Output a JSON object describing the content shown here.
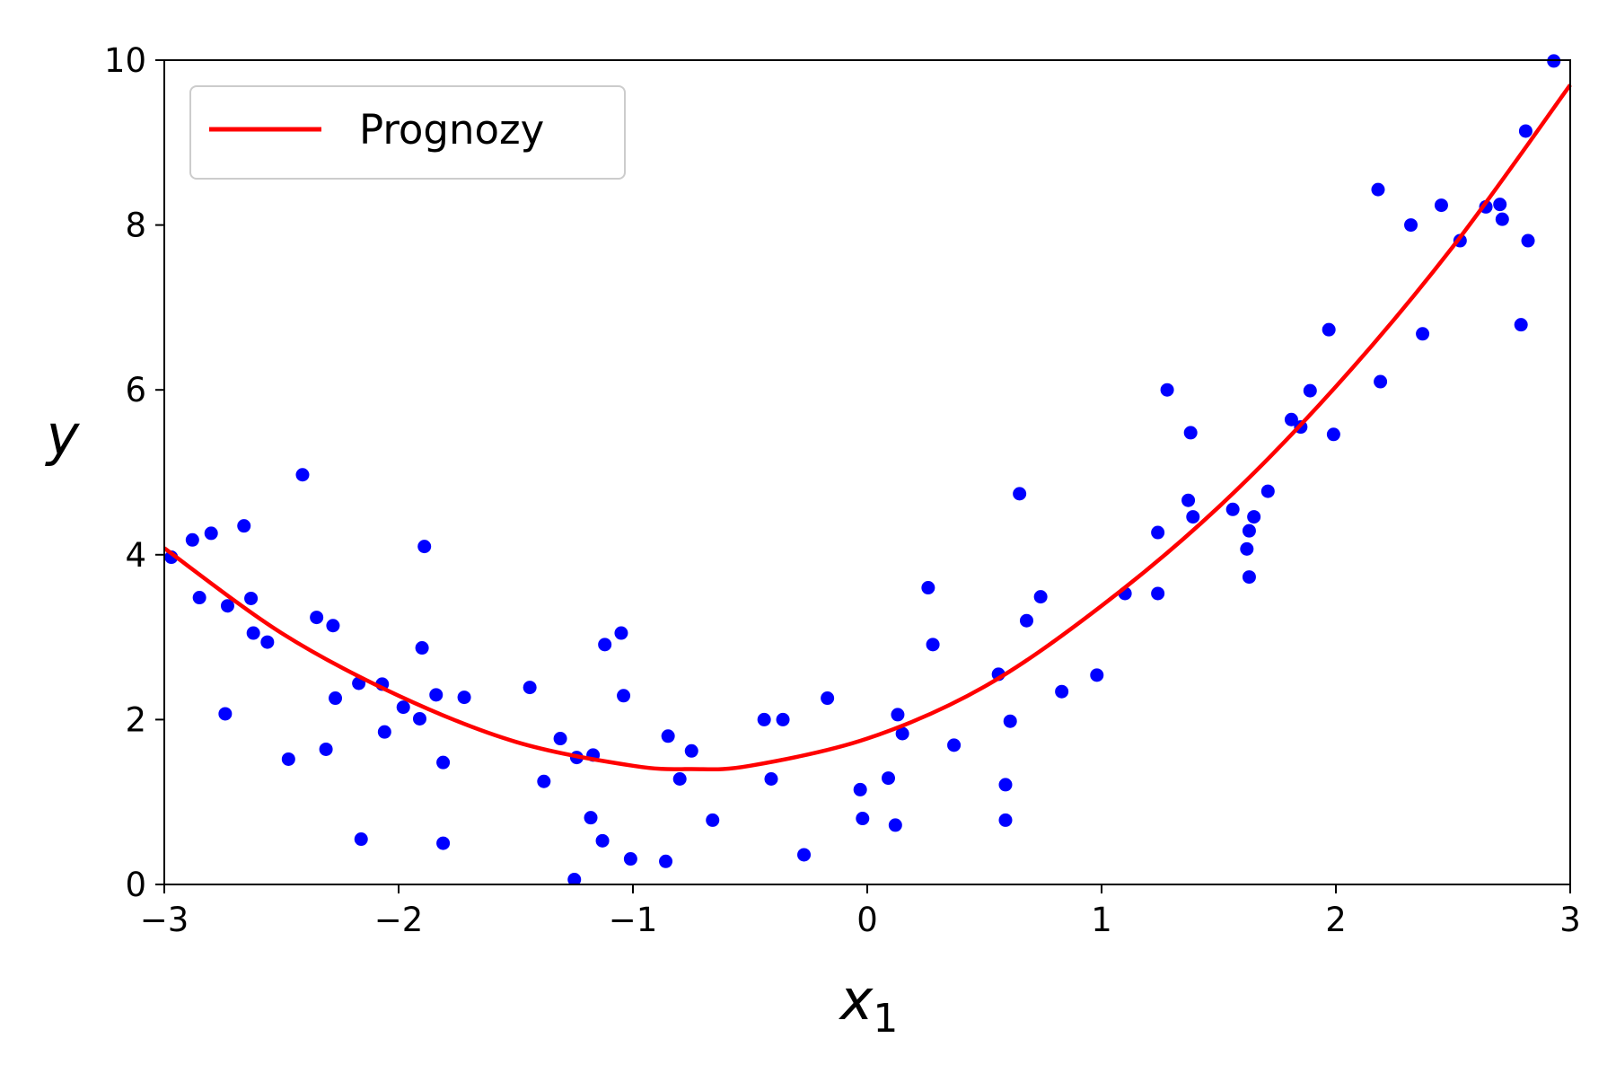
{
  "chart_data": {
    "type": "scatter",
    "xlim": [
      -3,
      3
    ],
    "ylim": [
      0,
      10
    ],
    "x_ticks": [
      -3,
      -2,
      -1,
      0,
      1,
      2,
      3
    ],
    "x_tick_labels": [
      "−3",
      "−2",
      "−1",
      "0",
      "1",
      "2",
      "3"
    ],
    "y_ticks": [
      0,
      2,
      4,
      6,
      8,
      10
    ],
    "y_tick_labels": [
      "0",
      "2",
      "4",
      "6",
      "8",
      "10"
    ],
    "xlabel_base": "x",
    "xlabel_sub": "1",
    "ylabel": "y",
    "grid": false,
    "legend": {
      "placement": "top-left",
      "entries": [
        "Prognozy"
      ]
    },
    "colors": {
      "points": "#0000ff",
      "line": "#ff0000"
    },
    "series": [
      {
        "kind": "scatter",
        "x": [
          -2.97,
          -2.88,
          -2.85,
          -2.8,
          -2.74,
          -2.73,
          -2.66,
          -2.63,
          -2.62,
          -2.56,
          -2.47,
          -2.41,
          -2.35,
          -2.31,
          -2.28,
          -2.27,
          -2.17,
          -2.16,
          -2.07,
          -2.06,
          -1.98,
          -1.91,
          -1.9,
          -1.89,
          -1.84,
          -1.81,
          -1.81,
          -1.72,
          -1.44,
          -1.38,
          -1.31,
          -1.25,
          -1.24,
          -1.18,
          -1.17,
          -1.13,
          -1.12,
          -1.05,
          -1.04,
          -1.01,
          -0.86,
          -0.85,
          -0.8,
          -0.75,
          -0.66,
          -0.44,
          -0.41,
          -0.36,
          -0.27,
          -0.17,
          -0.03,
          -0.02,
          0.09,
          0.12,
          0.13,
          0.15,
          0.26,
          0.28,
          0.37,
          0.56,
          0.59,
          0.59,
          0.61,
          0.65,
          0.68,
          0.74,
          0.83,
          0.98,
          1.1,
          1.24,
          1.24,
          1.28,
          1.37,
          1.38,
          1.39,
          1.56,
          1.62,
          1.63,
          1.63,
          1.65,
          1.71,
          1.81,
          1.85,
          1.89,
          1.97,
          1.99,
          2.18,
          2.19,
          2.32,
          2.37,
          2.45,
          2.53,
          2.64,
          2.7,
          2.71,
          2.79,
          2.81,
          2.82,
          2.93
        ],
        "y": [
          3.97,
          4.18,
          3.48,
          4.26,
          2.07,
          3.38,
          4.35,
          3.47,
          3.05,
          2.94,
          1.52,
          4.97,
          3.24,
          1.64,
          3.14,
          2.26,
          2.44,
          0.55,
          2.43,
          1.85,
          2.15,
          2.01,
          2.87,
          4.1,
          2.3,
          1.48,
          0.5,
          2.27,
          2.39,
          1.25,
          1.77,
          0.06,
          1.54,
          0.81,
          1.57,
          0.53,
          2.91,
          3.05,
          2.29,
          0.31,
          0.28,
          1.8,
          1.28,
          1.62,
          0.78,
          2.0,
          1.28,
          2.0,
          0.36,
          2.26,
          1.15,
          0.8,
          1.29,
          0.72,
          2.06,
          1.83,
          3.6,
          2.91,
          1.69,
          2.55,
          1.21,
          0.78,
          1.98,
          4.74,
          3.2,
          3.49,
          2.34,
          2.54,
          3.53,
          4.27,
          3.53,
          6.0,
          4.66,
          5.48,
          4.46,
          4.55,
          4.07,
          4.29,
          3.73,
          4.46,
          4.77,
          5.64,
          5.55,
          5.99,
          6.73,
          5.46,
          8.43,
          6.1,
          8.0,
          6.68,
          8.24,
          7.81,
          8.22,
          8.25,
          8.07,
          6.79,
          9.14,
          7.81,
          9.99
        ]
      },
      {
        "kind": "line",
        "name": "Prognozy",
        "x": [
          -3.0,
          -2.5,
          -2.0,
          -1.5,
          -1.0,
          -0.75,
          -0.5,
          0.0,
          0.5,
          1.0,
          1.5,
          2.0,
          2.5,
          3.0
        ],
        "y": [
          4.08,
          3.05,
          2.29,
          1.73,
          1.44,
          1.4,
          1.44,
          1.77,
          2.4,
          3.38,
          4.58,
          6.04,
          7.74,
          9.7
        ]
      }
    ]
  }
}
